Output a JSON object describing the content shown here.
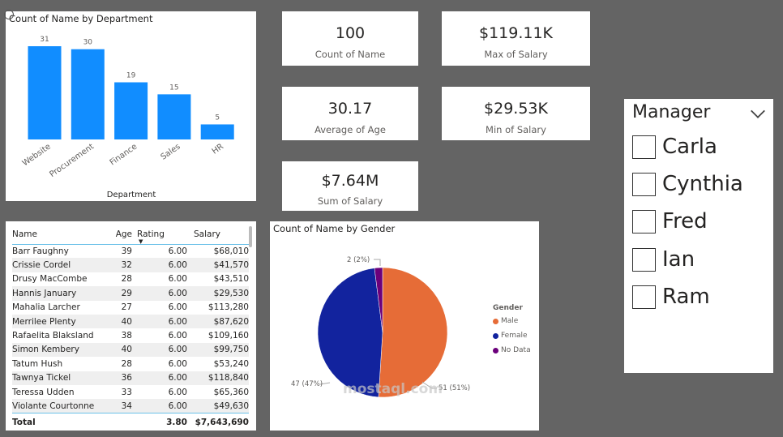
{
  "colors": {
    "bar": "#118dff",
    "male": "#e66c37",
    "female": "#12239e",
    "no_data": "#6b007b",
    "background": "#646464"
  },
  "chart_data": [
    {
      "type": "bar",
      "title": "Count of Name by Department",
      "xlabel": "Department",
      "ylabel": "",
      "categories": [
        "Website",
        "Procurement",
        "Finance",
        "Sales",
        "HR"
      ],
      "values": [
        31,
        30,
        19,
        15,
        5
      ],
      "data_labels": [
        "31",
        "30",
        "19",
        "15",
        "5"
      ]
    },
    {
      "type": "pie",
      "title": "Count of Name by Gender",
      "legend_title": "Gender",
      "legend_position": "right",
      "categories": [
        "Male",
        "Female",
        "No Data"
      ],
      "values": [
        51,
        47,
        2
      ],
      "data_labels": [
        "51 (51%)",
        "47 (47%)",
        "2 (2%)"
      ]
    }
  ],
  "kpis": [
    {
      "value": "100",
      "label": "Count of Name"
    },
    {
      "value": "$119.11K",
      "label": "Max of Salary"
    },
    {
      "value": "30.17",
      "label": "Average of Age"
    },
    {
      "value": "$29.53K",
      "label": "Min of Salary"
    },
    {
      "value": "$7.64M",
      "label": "Sum of Salary"
    }
  ],
  "table": {
    "headers": [
      "Name",
      "Age",
      "Rating",
      "Salary"
    ],
    "sort_icon": "caret-down-icon",
    "rows": [
      [
        "Barr Faughny",
        "39",
        "6.00",
        "$68,010"
      ],
      [
        "Crissie Cordel",
        "32",
        "6.00",
        "$41,570"
      ],
      [
        "Drusy MacCombe",
        "28",
        "6.00",
        "$43,510"
      ],
      [
        "Hannis January",
        "29",
        "6.00",
        "$29,530"
      ],
      [
        "Mahalia Larcher",
        "27",
        "6.00",
        "$113,280"
      ],
      [
        "Merrilee Plenty",
        "40",
        "6.00",
        "$87,620"
      ],
      [
        "Rafaelita Blaksland",
        "38",
        "6.00",
        "$109,160"
      ],
      [
        "Simon Kembery",
        "40",
        "6.00",
        "$99,750"
      ],
      [
        "Tatum Hush",
        "28",
        "6.00",
        "$53,240"
      ],
      [
        "Tawnya Tickel",
        "36",
        "6.00",
        "$118,840"
      ],
      [
        "Teressa Udden",
        "33",
        "6.00",
        "$65,360"
      ],
      [
        "Violante Courtonne",
        "34",
        "6.00",
        "$49,630"
      ]
    ],
    "total": {
      "label": "Total",
      "age": "",
      "rating": "3.80",
      "salary": "$7,643,690"
    }
  },
  "slicer": {
    "title": "Manager",
    "options": [
      "Carla",
      "Cynthia",
      "Fred",
      "Ian",
      "Ram"
    ]
  },
  "watermark": "mostaql.com"
}
